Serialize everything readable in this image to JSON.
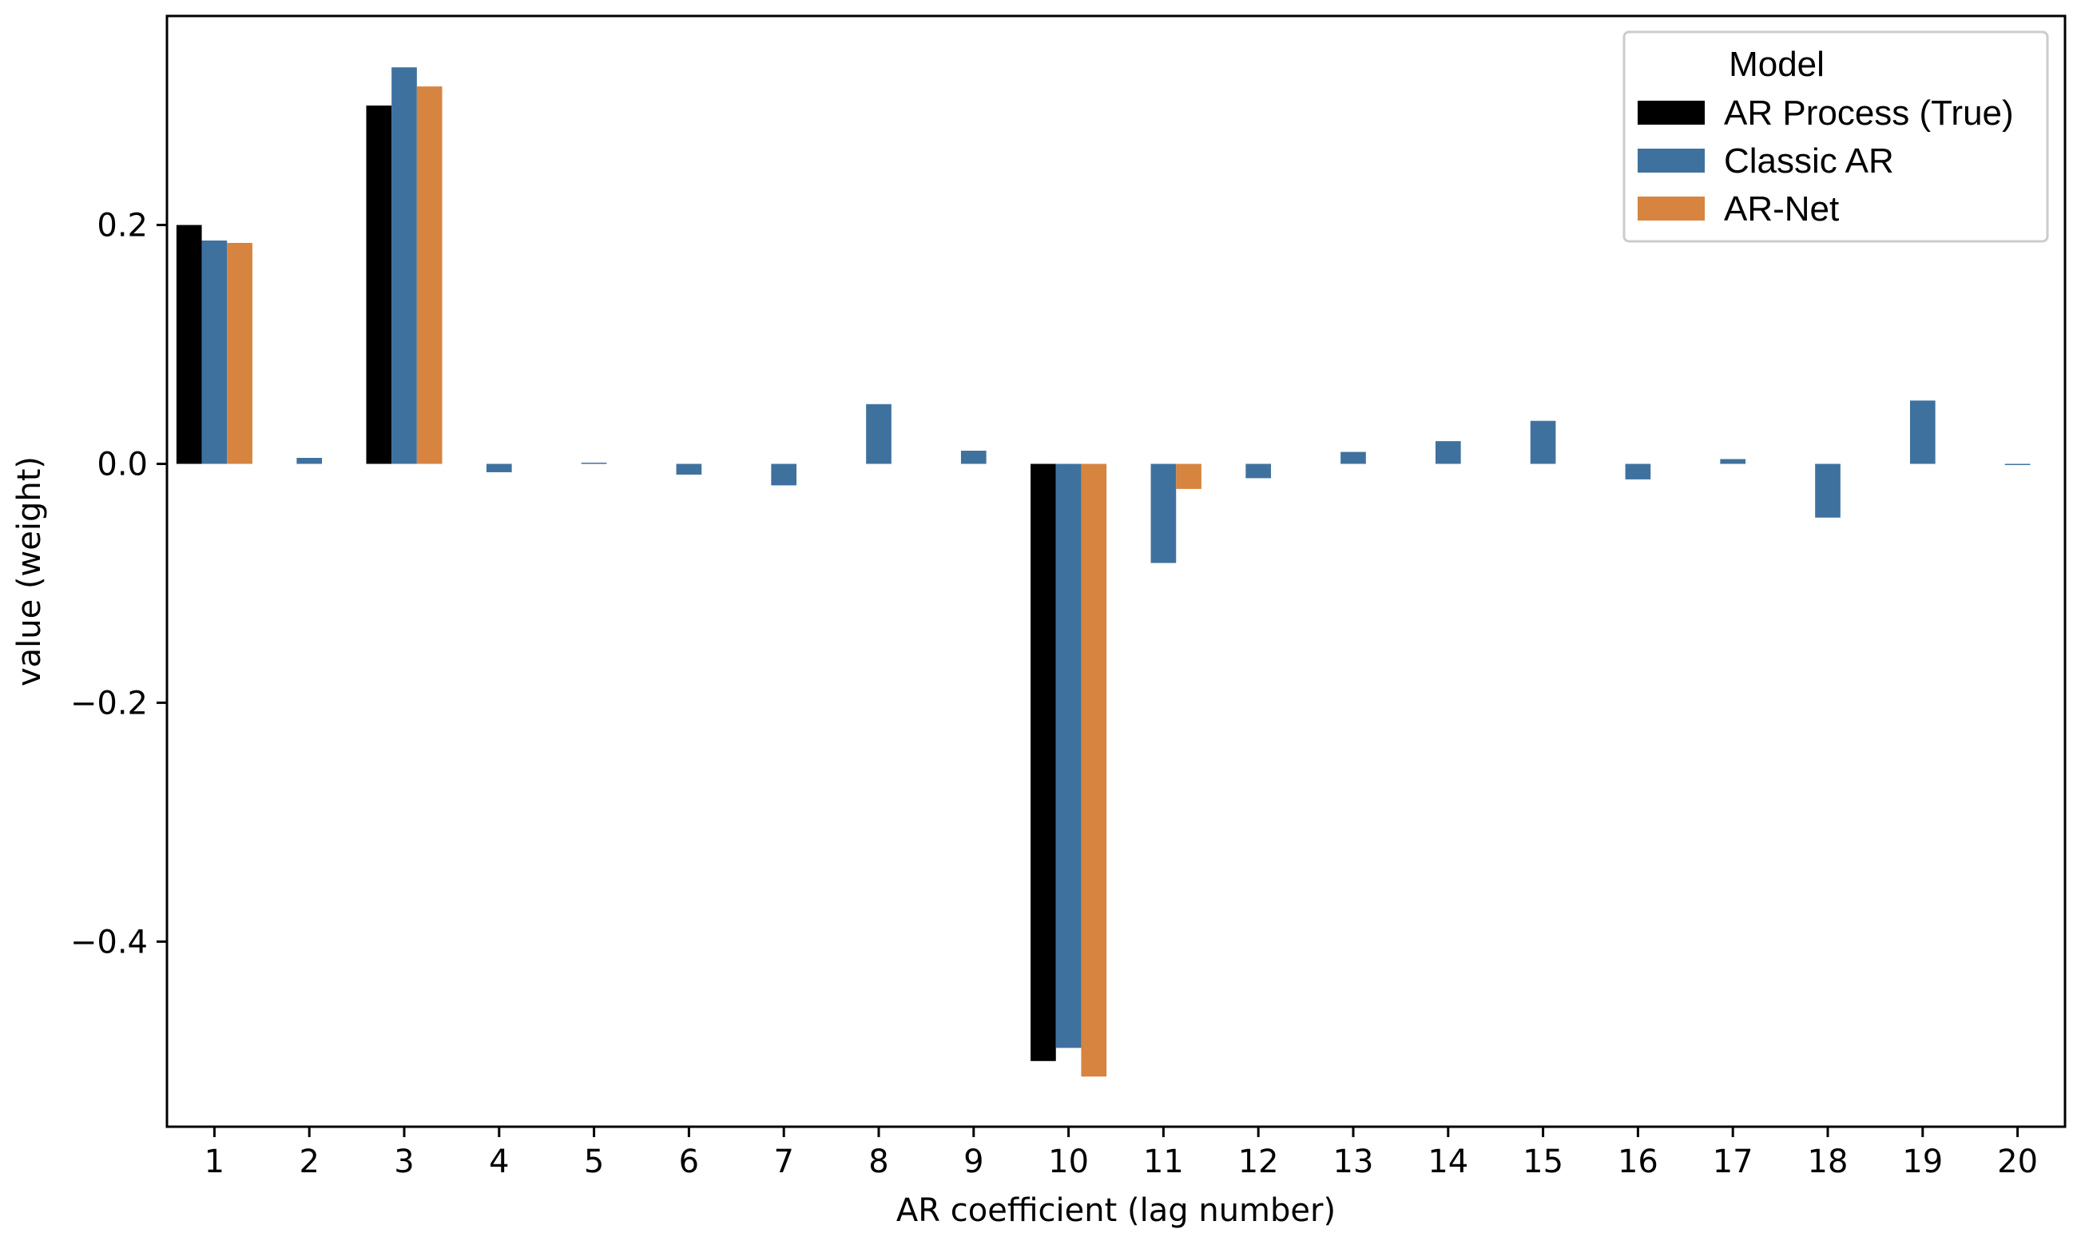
{
  "chart_data": {
    "type": "bar",
    "xlabel": "AR coefficient (lag number)",
    "ylabel": "value (weight)",
    "categories": [
      "1",
      "2",
      "3",
      "4",
      "5",
      "6",
      "7",
      "8",
      "9",
      "10",
      "11",
      "12",
      "13",
      "14",
      "15",
      "16",
      "17",
      "18",
      "19",
      "20"
    ],
    "ylim": [
      -0.555,
      0.375
    ],
    "yticks": [
      0.2,
      0.0,
      -0.2,
      -0.4
    ],
    "ytick_labels": [
      "0.2",
      "0.0",
      "−0.2",
      "−0.4"
    ],
    "grid": false,
    "legend": {
      "title": "Model",
      "placement": "top-right"
    },
    "series": [
      {
        "name": "AR Process (True)",
        "color": "#000000",
        "values": [
          0.2,
          0,
          0.3,
          0,
          0,
          0,
          0,
          0,
          0,
          -0.5,
          0,
          0,
          0,
          0,
          0,
          0,
          0,
          0,
          0,
          0
        ]
      },
      {
        "name": "Classic AR",
        "color": "#3f719f",
        "values": [
          0.187,
          0.005,
          0.332,
          -0.007,
          0.001,
          -0.009,
          -0.018,
          0.05,
          0.011,
          -0.489,
          -0.083,
          -0.012,
          0.01,
          0.019,
          0.036,
          -0.013,
          0.004,
          -0.045,
          0.053,
          -0.001
        ]
      },
      {
        "name": "AR-Net",
        "color": "#d6843f",
        "values": [
          0.185,
          0,
          0.316,
          0,
          0,
          0,
          0,
          0,
          0,
          -0.513,
          -0.021,
          0,
          0,
          0,
          0,
          0,
          0,
          0,
          0,
          0
        ]
      }
    ]
  }
}
